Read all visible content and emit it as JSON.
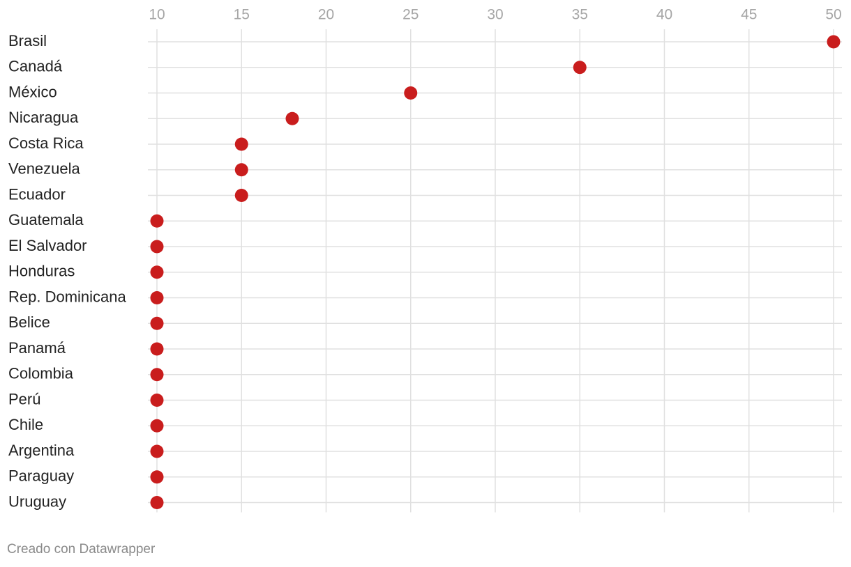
{
  "chart_data": {
    "type": "dot",
    "categories": [
      "Brasil",
      "Canadá",
      "México",
      "Nicaragua",
      "Costa Rica",
      "Venezuela",
      "Ecuador",
      "Guatemala",
      "El Salvador",
      "Honduras",
      "Rep. Dominicana",
      "Belice",
      "Panamá",
      "Colombia",
      "Perú",
      "Chile",
      "Argentina",
      "Paraguay",
      "Uruguay"
    ],
    "values": [
      50,
      35,
      25,
      18,
      15,
      15,
      15,
      10,
      10,
      10,
      10,
      10,
      10,
      10,
      10,
      10,
      10,
      10,
      10
    ],
    "color": "#c91d1d",
    "xlim": [
      10,
      50
    ],
    "xticks": [
      10,
      15,
      20,
      25,
      30,
      35,
      40,
      45,
      50
    ],
    "grid": true,
    "source": "Creado con Datawrapper"
  }
}
